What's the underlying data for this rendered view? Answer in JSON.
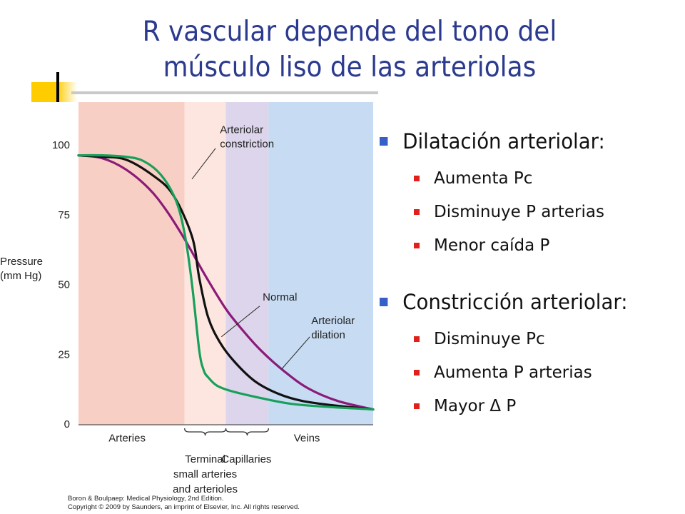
{
  "slide": {
    "title_line1": "R vascular depende del tono del",
    "title_line2": "músculo liso de las arteriolas"
  },
  "bullets": [
    {
      "label": "Dilatación arteriolar:",
      "items": [
        "Aumenta Pc",
        "Disminuye P arterias",
        "Menor caída P"
      ]
    },
    {
      "label": "Constricción arteriolar:",
      "items": [
        "Disminuye Pc",
        "Aumenta P arterias",
        "Mayor Δ P"
      ]
    }
  ],
  "colors": {
    "title": "#2b3a8f",
    "accent_yellow": "#ffcc00",
    "bullet_main": "#3560c6",
    "bullet_sub": "#e0211b",
    "region_arteries": "#f8cfc4",
    "region_terminal": "#fde6df",
    "region_capillaries": "#dcd5ec",
    "region_veins": "#c7dcf3",
    "normal": "#111111",
    "constriction": "#16a05a",
    "dilation": "#8b1a78"
  },
  "chart_data": {
    "type": "line",
    "ylabel": "Pressure\n(mm Hg)",
    "yticks": [
      0,
      25,
      50,
      75,
      100
    ],
    "ylim": [
      0,
      100
    ],
    "xlim": [
      0,
      1
    ],
    "grid": false,
    "regions": [
      {
        "name": "Arteries",
        "from": 0,
        "to": 0.36
      },
      {
        "name": "Terminal small arteries and arterioles",
        "from": 0.36,
        "to": 0.5
      },
      {
        "name": "Capillaries",
        "from": 0.5,
        "to": 0.645
      },
      {
        "name": "Veins",
        "from": 0.645,
        "to": 1
      }
    ],
    "region_labels": [
      {
        "lines": [
          "Arteries"
        ],
        "x": 0.165,
        "y": -5
      },
      {
        "lines": [
          "Terminal",
          "small arteries",
          "and arterioles"
        ],
        "x": 0.43,
        "y": -12.5
      },
      {
        "lines": [
          "Capillaries"
        ],
        "x": 0.57,
        "y": -12.5
      },
      {
        "lines": [
          "Veins"
        ],
        "x": 0.775,
        "y": -5
      }
    ],
    "braces": [
      {
        "from": 0.36,
        "to": 0.5
      },
      {
        "from": 0.5,
        "to": 0.645
      }
    ],
    "series": [
      {
        "name": "Normal",
        "color": "#111111",
        "x": [
          0,
          0.08,
          0.16,
          0.25,
          0.32,
          0.385,
          0.41,
          0.44,
          0.48,
          0.53,
          0.6,
          0.68,
          0.76,
          0.86,
          1.0
        ],
        "y": [
          96,
          95.5,
          94.5,
          89,
          82,
          67,
          52,
          38,
          29,
          22,
          15,
          10.5,
          8,
          6.5,
          5
        ]
      },
      {
        "name": "Arteriolar constriction",
        "color": "#16a05a",
        "x": [
          0,
          0.08,
          0.16,
          0.22,
          0.28,
          0.33,
          0.36,
          0.385,
          0.41,
          0.425,
          0.44,
          0.47,
          0.52,
          0.6,
          0.72,
          0.86,
          1.0
        ],
        "y": [
          96,
          96,
          95.5,
          94,
          89,
          80,
          68,
          50,
          26,
          19,
          16.5,
          13.5,
          11.5,
          9.5,
          7,
          5.8,
          5
        ]
      },
      {
        "name": "Arteriolar dilation",
        "color": "#8b1a78",
        "x": [
          0,
          0.08,
          0.16,
          0.24,
          0.3,
          0.36,
          0.43,
          0.5,
          0.56,
          0.62,
          0.7,
          0.78,
          0.88,
          1.0
        ],
        "y": [
          96,
          95,
          91,
          84,
          76,
          66,
          53,
          41,
          33,
          26,
          18.5,
          12.5,
          8,
          5
        ]
      }
    ],
    "annotations": [
      {
        "lines": [
          "Arteriolar",
          "constriction"
        ],
        "x": 0.48,
        "y": 104,
        "anchor": "start",
        "pointer": {
          "x1": 0.465,
          "y1": 98.5,
          "x2": 0.385,
          "y2": 87.5
        }
      },
      {
        "lines": [
          "Normal"
        ],
        "x": 0.625,
        "y": 44,
        "anchor": "start",
        "pointer": {
          "x1": 0.615,
          "y1": 42,
          "x2": 0.485,
          "y2": 31
        }
      },
      {
        "lines": [
          "Arteriolar",
          "dilation"
        ],
        "x": 0.79,
        "y": 35.5,
        "anchor": "start",
        "pointer": {
          "x1": 0.785,
          "y1": 31,
          "x2": 0.69,
          "y2": 19.5
        }
      }
    ],
    "source": [
      "Boron & Boulpaep: Medical Physiology, 2nd Edition.",
      "Copyright © 2009 by Saunders, an imprint of Elsevier, Inc. All rights reserved."
    ]
  }
}
